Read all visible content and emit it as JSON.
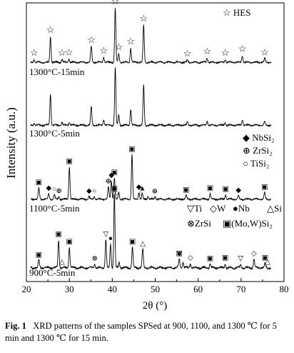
{
  "chart_data": {
    "type": "line",
    "xlabel": "2θ (°)",
    "ylabel": "Intensity (a.u.)",
    "xlim": [
      20,
      80
    ],
    "xticks": [
      20,
      30,
      40,
      50,
      60,
      70,
      80
    ],
    "grid": false,
    "legend_position": "top-right",
    "series": [
      {
        "name": "1300°C-15min",
        "baseline": 0.06,
        "peaks": [
          [
            21.8,
            0.05
          ],
          [
            25.6,
            0.45
          ],
          [
            28.3,
            0.05
          ],
          [
            29.9,
            0.06
          ],
          [
            35.1,
            0.28
          ],
          [
            38.0,
            0.09
          ],
          [
            40.7,
            0.95
          ],
          [
            41.5,
            0.15
          ],
          [
            44.3,
            0.25
          ],
          [
            47.3,
            0.65
          ],
          [
            57.5,
            0.04
          ],
          [
            62.1,
            0.08
          ],
          [
            66.3,
            0.05
          ],
          [
            70.3,
            0.12
          ],
          [
            75.5,
            0.06
          ]
        ]
      },
      {
        "name": "1300°C-5min",
        "baseline": 0.06,
        "peaks": [
          [
            21.8,
            0.04
          ],
          [
            25.6,
            0.55
          ],
          [
            28.3,
            0.05
          ],
          [
            30.0,
            0.06
          ],
          [
            35.1,
            0.32
          ],
          [
            38.0,
            0.1
          ],
          [
            40.7,
            1.0
          ],
          [
            41.5,
            0.18
          ],
          [
            44.3,
            0.28
          ],
          [
            47.3,
            0.7
          ],
          [
            57.5,
            0.05
          ],
          [
            62.1,
            0.07
          ],
          [
            66.3,
            0.05
          ],
          [
            70.3,
            0.1
          ],
          [
            75.5,
            0.06
          ]
        ]
      },
      {
        "name": "1100°C-5min",
        "baseline": 0.08,
        "peaks": [
          [
            22.9,
            0.2
          ],
          [
            25.2,
            0.1
          ],
          [
            26.5,
            0.08
          ],
          [
            27.6,
            0.05
          ],
          [
            30.0,
            0.58
          ],
          [
            34.6,
            0.05
          ],
          [
            35.8,
            0.05
          ],
          [
            39.1,
            0.22
          ],
          [
            39.8,
            0.33
          ],
          [
            40.5,
            0.38
          ],
          [
            41.5,
            0.12
          ],
          [
            44.6,
            0.8
          ],
          [
            46.2,
            0.12
          ],
          [
            47.0,
            0.09
          ],
          [
            48.3,
            0.05
          ],
          [
            50.0,
            0.05
          ],
          [
            57.2,
            0.07
          ],
          [
            62.8,
            0.1
          ],
          [
            66.4,
            0.08
          ],
          [
            69.4,
            0.06
          ],
          [
            75.5,
            0.12
          ]
        ]
      },
      {
        "name": "900°C-5min",
        "baseline": 0.1,
        "peaks": [
          [
            22.9,
            0.1
          ],
          [
            27.5,
            0.38
          ],
          [
            30.0,
            0.28
          ],
          [
            35.9,
            0.05
          ],
          [
            38.5,
            0.38
          ],
          [
            39.6,
            0.32
          ],
          [
            40.5,
            1.0
          ],
          [
            41.6,
            0.08
          ],
          [
            44.7,
            0.28
          ],
          [
            47.1,
            0.25
          ],
          [
            55.6,
            0.12
          ],
          [
            56.5,
            0.08
          ],
          [
            58.2,
            0.06
          ],
          [
            62.8,
            0.05
          ],
          [
            66.3,
            0.06
          ],
          [
            69.9,
            0.05
          ],
          [
            73.0,
            0.12
          ],
          [
            75.6,
            0.06
          ]
        ]
      }
    ],
    "markers": [
      {
        "series": 0,
        "symbol": "☆",
        "x": [
          21.8,
          25.6,
          28.3,
          29.9,
          35.1,
          38.0,
          40.7,
          41.5,
          44.3,
          47.3,
          57.5,
          62.1,
          66.3,
          70.3,
          75.5
        ]
      },
      {
        "series": 2,
        "symbol": "◆",
        "x": [
          25.2,
          34.6,
          39.8,
          46.2,
          69.4
        ]
      },
      {
        "series": 2,
        "symbol": "⊕",
        "x": [
          27.6,
          39.1,
          49.9
        ]
      },
      {
        "series": 2,
        "symbol": "○",
        "x": [
          26.5,
          35.8,
          41.0,
          46.6
        ]
      },
      {
        "series": 2,
        "symbol": "▲",
        "x": [
          47.0
        ]
      },
      {
        "series": 2,
        "symbol": "▣",
        "x": [
          22.9,
          30.0,
          40.5,
          44.6,
          57.2,
          62.8,
          66.4,
          75.5
        ]
      },
      {
        "series": 3,
        "symbol": "▣",
        "x": [
          22.9,
          27.5,
          30.0,
          40.5,
          44.7,
          55.6,
          62.8,
          66.3,
          75.6
        ]
      },
      {
        "series": 3,
        "symbol": "▽",
        "x": [
          38.5,
          55.6,
          69.9
        ]
      },
      {
        "series": 3,
        "symbol": "◇",
        "x": [
          40.5,
          58.2,
          73.0
        ]
      },
      {
        "series": 3,
        "symbol": "●",
        "x": [
          39.6
        ]
      },
      {
        "series": 3,
        "symbol": "△",
        "x": [
          28.3,
          47.1,
          76.2
        ]
      },
      {
        "series": 3,
        "symbol": "⊗",
        "x": [
          35.9
        ]
      }
    ],
    "legends": {
      "hes": {
        "symbol": "☆",
        "label": "HES"
      },
      "set2": [
        {
          "symbol": "◆",
          "label": "NbSi₂"
        },
        {
          "symbol": "⊕",
          "label": "ZrSi₂"
        },
        {
          "symbol": "○",
          "label": "TiSi₂"
        }
      ],
      "set3_row1": [
        {
          "symbol": "▽",
          "label": "Ti"
        },
        {
          "symbol": "◇",
          "label": "W"
        },
        {
          "symbol": "●",
          "label": "Nb"
        },
        {
          "symbol": "△",
          "label": "Si"
        }
      ],
      "set3_row2": [
        {
          "symbol": "⊗",
          "label": "ZrSi"
        },
        {
          "symbol": "▣",
          "label": "(Mo,W)Si₂"
        }
      ]
    }
  },
  "caption": {
    "label": "Fig. 1",
    "text": "XRD patterns of the samples SPSed at 900, 1100, and 1300 ℃ for 5 min and 1300 ℃ for 15 min."
  }
}
